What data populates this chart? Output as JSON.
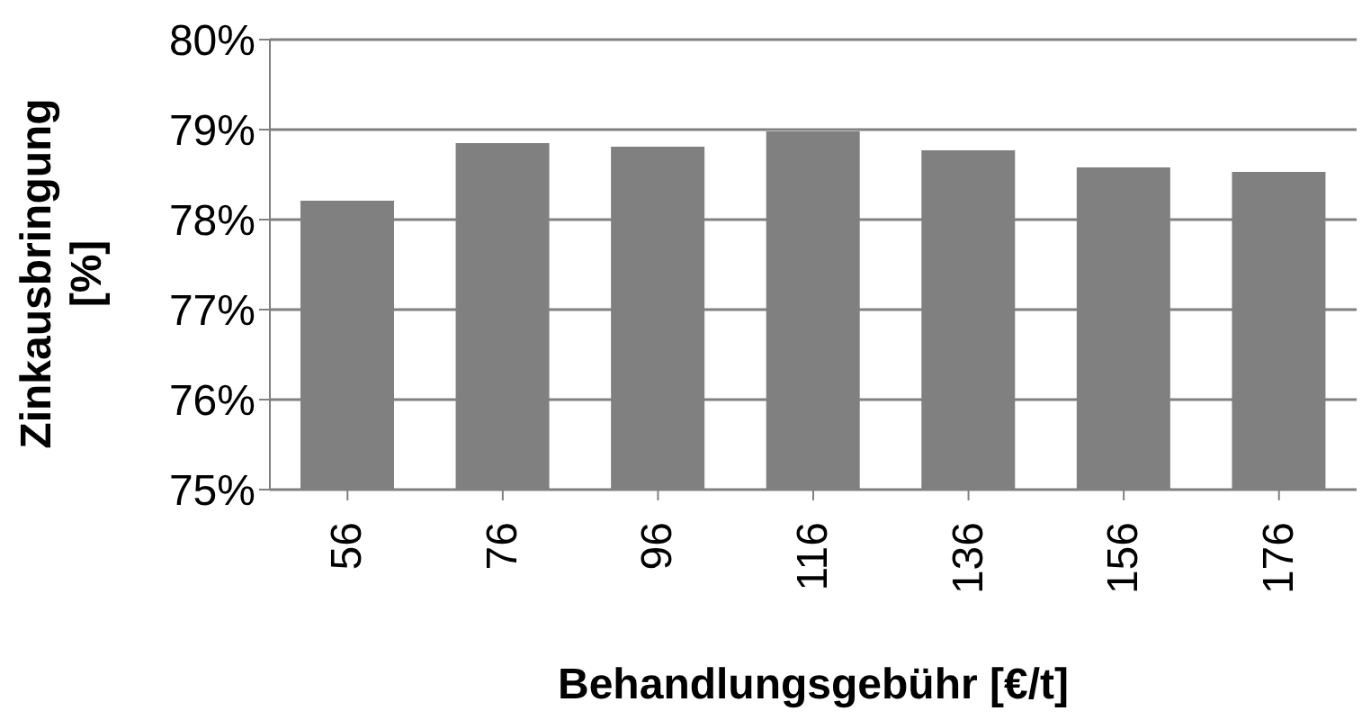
{
  "chart_data": {
    "type": "bar",
    "xlabel": "Behandlungsgebühr [€/t]",
    "ylabel": "Zinkausbringung [%]",
    "categories": [
      "56",
      "76",
      "96",
      "116",
      "136",
      "156",
      "176"
    ],
    "values": [
      78.21,
      78.85,
      78.81,
      78.98,
      78.77,
      78.58,
      78.53
    ],
    "color": "#808080",
    "ylim": [
      75,
      80
    ],
    "yticks": [
      {
        "value": 75,
        "label": "75%"
      },
      {
        "value": 76,
        "label": "76%"
      },
      {
        "value": 77,
        "label": "77%"
      },
      {
        "value": 78,
        "label": "78%"
      },
      {
        "value": 79,
        "label": "79%"
      },
      {
        "value": 80,
        "label": "80%"
      }
    ],
    "grid": "y"
  }
}
